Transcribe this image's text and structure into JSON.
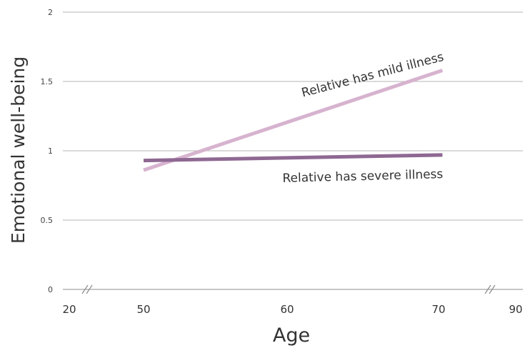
{
  "chart_data": {
    "type": "line",
    "xlabel": "Age",
    "ylabel": "Emotional well-being",
    "xlim": [
      20,
      90
    ],
    "ylim": [
      0,
      2
    ],
    "x_ticks": [
      "20",
      "50",
      "60",
      "70",
      "90"
    ],
    "y_ticks": [
      "0",
      "0.5",
      "1",
      "1.5",
      "2"
    ],
    "axis_breaks": [
      "between 20 and 50",
      "between 70 and 90"
    ],
    "grid": true,
    "series": [
      {
        "name": "Relative has mild illness",
        "color": "#d7b3cf",
        "x": [
          50,
          71
        ],
        "y": [
          0.86,
          1.58
        ]
      },
      {
        "name": "Relative has severe illness",
        "color": "#8e6892",
        "x": [
          50,
          71
        ],
        "y": [
          0.93,
          0.97
        ]
      }
    ]
  }
}
